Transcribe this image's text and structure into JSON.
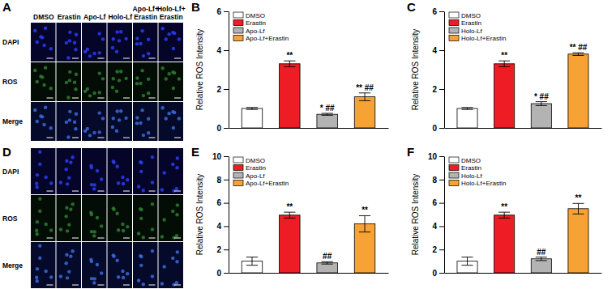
{
  "image_panels": [
    {
      "title": "A",
      "rows": [
        "DAPI",
        "ROS",
        "Merge"
      ],
      "columns": [
        [
          "DMSO"
        ],
        [
          "Erastin"
        ],
        [
          "Apo-Lf"
        ],
        [
          "Holo-Lf"
        ],
        [
          "Apo-Lf+",
          "Erastin"
        ],
        [
          "Holo-Lf+",
          "Erastin"
        ]
      ]
    },
    {
      "title": "D",
      "rows": [
        "DAPI",
        "ROS",
        "Merge"
      ]
    }
  ],
  "chart_data": [
    {
      "type": "bar",
      "title": "B",
      "y_label": "Relative ROS Intensity",
      "categories": [
        "DMSO",
        "Erastin",
        "Apo-Lf",
        "Apo-Lf+Erastin"
      ],
      "values": [
        1.0,
        3.3,
        0.7,
        1.6
      ],
      "errors": [
        0.05,
        0.15,
        0.05,
        0.2
      ],
      "significance": [
        null,
        "**",
        "* ##",
        "** ##"
      ],
      "colors": [
        "#ffffff",
        "#ee1c24",
        "#b3b3b3",
        "#f7a234"
      ],
      "ylim": [
        0,
        6
      ],
      "yticks": [
        0,
        2,
        4,
        6
      ],
      "legend": "upper left",
      "tick_labels": "y"
    },
    {
      "type": "bar",
      "title": "C",
      "y_label": "Relative ROS Intensity",
      "categories": [
        "DMSO",
        "Erastin",
        "Holo-Lf",
        "Holo-Lf+Erastin"
      ],
      "values": [
        1.0,
        3.3,
        1.25,
        3.8
      ],
      "errors": [
        0.05,
        0.15,
        0.1,
        0.07
      ],
      "significance": [
        null,
        "**",
        "* ##",
        "** ##"
      ],
      "colors": [
        "#ffffff",
        "#ee1c24",
        "#b3b3b3",
        "#f7a234"
      ],
      "ylim": [
        0,
        6
      ],
      "yticks": [
        0,
        2,
        4,
        6
      ],
      "legend": "upper left",
      "tick_labels": "y"
    },
    {
      "type": "bar",
      "title": "E",
      "y_label": "Relative ROS Intensity",
      "categories": [
        "DMSO",
        "Erastin",
        "Apo-Lf",
        "Apo-Lf+Erastin"
      ],
      "values": [
        1.0,
        4.95,
        0.85,
        4.2
      ],
      "errors": [
        0.35,
        0.25,
        0.1,
        0.7
      ],
      "significance": [
        null,
        "**",
        "##",
        "**"
      ],
      "colors": [
        "#ffffff",
        "#ee1c24",
        "#b3b3b3",
        "#f7a234"
      ],
      "ylim": [
        0,
        10
      ],
      "yticks": [
        0,
        2,
        4,
        6,
        8,
        10
      ],
      "legend": "upper left",
      "tick_labels": "y"
    },
    {
      "type": "bar",
      "title": "F",
      "y_label": "Relative ROS Intensity",
      "categories": [
        "DMSO",
        "Erastin",
        "Holo-Lf",
        "Holo-Lf+Erastin"
      ],
      "values": [
        1.0,
        4.95,
        1.2,
        5.5
      ],
      "errors": [
        0.35,
        0.25,
        0.15,
        0.45
      ],
      "significance": [
        null,
        "**",
        "##",
        "**"
      ],
      "colors": [
        "#ffffff",
        "#ee1c24",
        "#b3b3b3",
        "#f7a234"
      ],
      "ylim": [
        0,
        10
      ],
      "yticks": [
        0,
        2,
        4,
        6,
        8,
        10
      ],
      "legend": "upper left",
      "tick_labels": "y"
    }
  ]
}
